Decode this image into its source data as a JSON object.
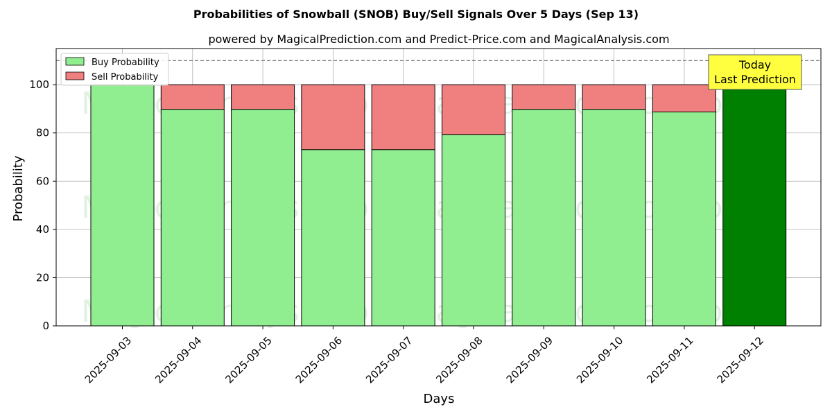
{
  "chart_data": {
    "type": "bar",
    "stacked": true,
    "title": "Probabilities of Snowball (SNOB) Buy/Sell Signals Over 5 Days (Sep 13)",
    "subtitle": "powered by MagicalPrediction.com and Predict-Price.com and MagicalAnalysis.com",
    "xlabel": "Days",
    "ylabel": "Probability",
    "ylim": [
      0,
      115
    ],
    "yticks": [
      0,
      20,
      40,
      60,
      80,
      100
    ],
    "grid": true,
    "legend_position": "top-left",
    "reference_line": 110,
    "categories": [
      "2025-09-03",
      "2025-09-04",
      "2025-09-05",
      "2025-09-06",
      "2025-09-07",
      "2025-09-08",
      "2025-09-09",
      "2025-09-10",
      "2025-09-11",
      "2025-09-12"
    ],
    "series": [
      {
        "name": "Buy Probability",
        "color": "#90ee90",
        "values": [
          100,
          89.8,
          89.8,
          73.1,
          73.1,
          79.3,
          89.8,
          89.8,
          88.7,
          100
        ]
      },
      {
        "name": "Sell Probability",
        "color": "#f08080",
        "values": [
          0,
          10.2,
          10.2,
          26.9,
          26.9,
          20.7,
          10.2,
          10.2,
          11.3,
          0
        ]
      }
    ],
    "highlight": {
      "index": 9,
      "color": "#008000"
    },
    "annotation": {
      "line1": "Today",
      "line2": "Last Prediction",
      "bg": "#ffff40"
    },
    "watermarks": [
      "MagicalAnalysis.com",
      "MagicalPrediction.com"
    ]
  }
}
